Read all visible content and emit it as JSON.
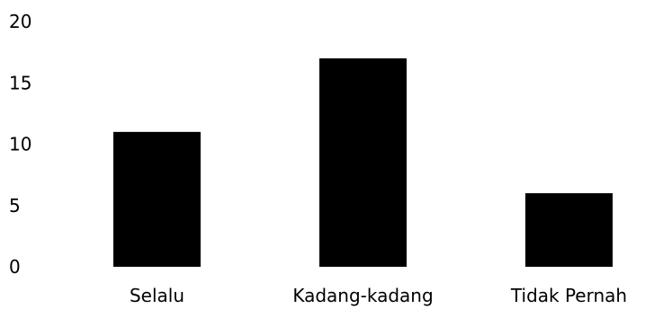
{
  "chart_data": {
    "type": "bar",
    "categories": [
      "Selalu",
      "Kadang-kadang",
      "Tidak Pernah"
    ],
    "values": [
      11,
      17,
      6
    ],
    "yticks": [
      "0",
      "5",
      "10",
      "15",
      "20"
    ],
    "ylim": [
      0,
      20
    ],
    "grid": false,
    "legend": "none",
    "bar_color": "#000000",
    "text_color": "#000000"
  }
}
